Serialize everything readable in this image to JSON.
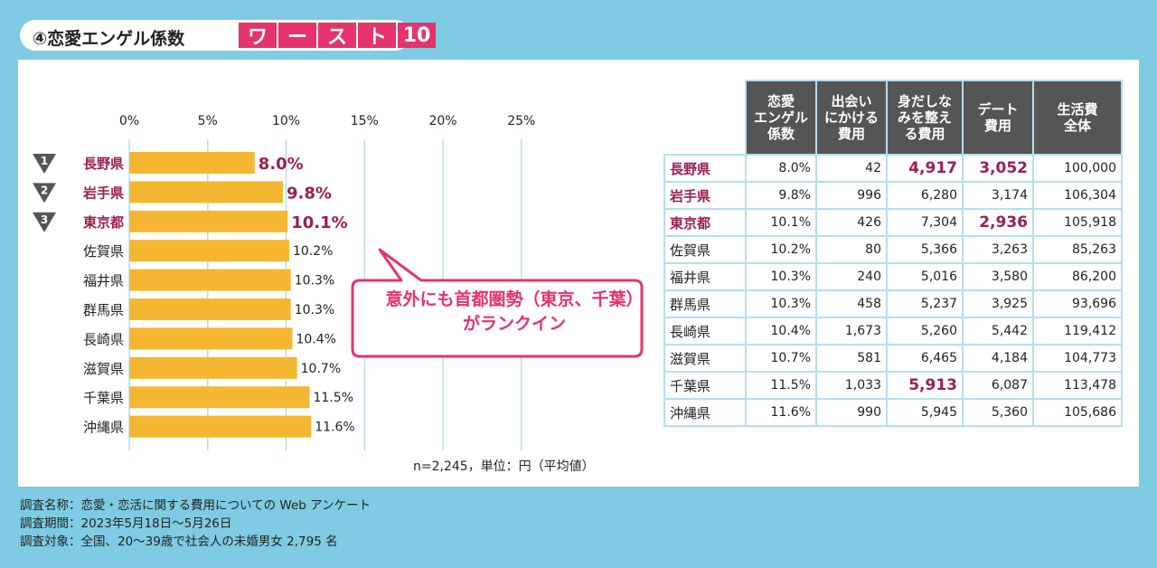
{
  "title": {
    "prefix": "④恋愛エンゲル係数",
    "boxes": [
      "ワ",
      "ー",
      "ス",
      "ト",
      "10"
    ]
  },
  "chart_data": {
    "type": "bar",
    "orientation": "horizontal",
    "xlim": [
      0,
      25
    ],
    "x_ticks": [
      "0%",
      "5%",
      "10%",
      "15%",
      "20%",
      "25%"
    ],
    "categories": [
      "長野県",
      "岩手県",
      "東京都",
      "佐賀県",
      "福井県",
      "群馬県",
      "長崎県",
      "滋賀県",
      "千葉県",
      "沖縄県"
    ],
    "values": [
      8.0,
      9.8,
      10.1,
      10.2,
      10.3,
      10.3,
      10.4,
      10.7,
      11.5,
      11.6
    ],
    "value_labels": [
      "8.0%",
      "9.8%",
      "10.1%",
      "10.2%",
      "10.3%",
      "10.3%",
      "10.4%",
      "10.7%",
      "11.5%",
      "11.6%"
    ],
    "ranks": [
      "1",
      "2",
      "3"
    ],
    "bar_color": "#f5b731",
    "highlight_color": "#9c1f4e",
    "grid": true
  },
  "callout": {
    "line1": "意外にも首都圏勢（東京、千葉）",
    "line2": "がランクイン",
    "color": "#e6336d"
  },
  "note": "n=2,245，単位：円（平均値）",
  "table": {
    "headers": [
      "恋愛\nエンゲル\n係数",
      "出会い\nにかける\n費用",
      "身だしな\nみを整え\nる費用",
      "デート\n費用",
      "生活費\n全体"
    ],
    "rows": [
      {
        "pref": "長野県",
        "cells": [
          "8.0%",
          "42",
          "4,917",
          "3,052",
          "100,000"
        ]
      },
      {
        "pref": "岩手県",
        "cells": [
          "9.8%",
          "996",
          "6,280",
          "3,174",
          "106,304"
        ]
      },
      {
        "pref": "東京都",
        "cells": [
          "10.1%",
          "426",
          "7,304",
          "2,936",
          "105,918"
        ]
      },
      {
        "pref": "佐賀県",
        "cells": [
          "10.2%",
          "80",
          "5,366",
          "3,263",
          "85,263"
        ]
      },
      {
        "pref": "福井県",
        "cells": [
          "10.3%",
          "240",
          "5,016",
          "3,580",
          "86,200"
        ]
      },
      {
        "pref": "群馬県",
        "cells": [
          "10.3%",
          "458",
          "5,237",
          "3,925",
          "93,696"
        ]
      },
      {
        "pref": "長崎県",
        "cells": [
          "10.4%",
          "1,673",
          "5,260",
          "5,442",
          "119,412"
        ]
      },
      {
        "pref": "滋賀県",
        "cells": [
          "10.7%",
          "581",
          "6,465",
          "4,184",
          "104,773"
        ]
      },
      {
        "pref": "千葉県",
        "cells": [
          "11.5%",
          "1,033",
          "5,913",
          "6,087",
          "113,478"
        ]
      },
      {
        "pref": "沖縄県",
        "cells": [
          "11.6%",
          "990",
          "5,945",
          "5,360",
          "105,686"
        ]
      }
    ],
    "highlight_rows": [
      0,
      1,
      2
    ],
    "big_cells": [
      [
        0,
        2
      ],
      [
        0,
        3
      ],
      [
        2,
        3
      ],
      [
        8,
        2
      ]
    ]
  },
  "footer": {
    "lines": [
      "調査名称：恋愛・恋活に関する費用についての Web アンケート",
      "調査期間：2023年5月18日～5月26日",
      "調査対象：全国、20～39歳で社会人の未婚男女 2,795 名"
    ]
  }
}
